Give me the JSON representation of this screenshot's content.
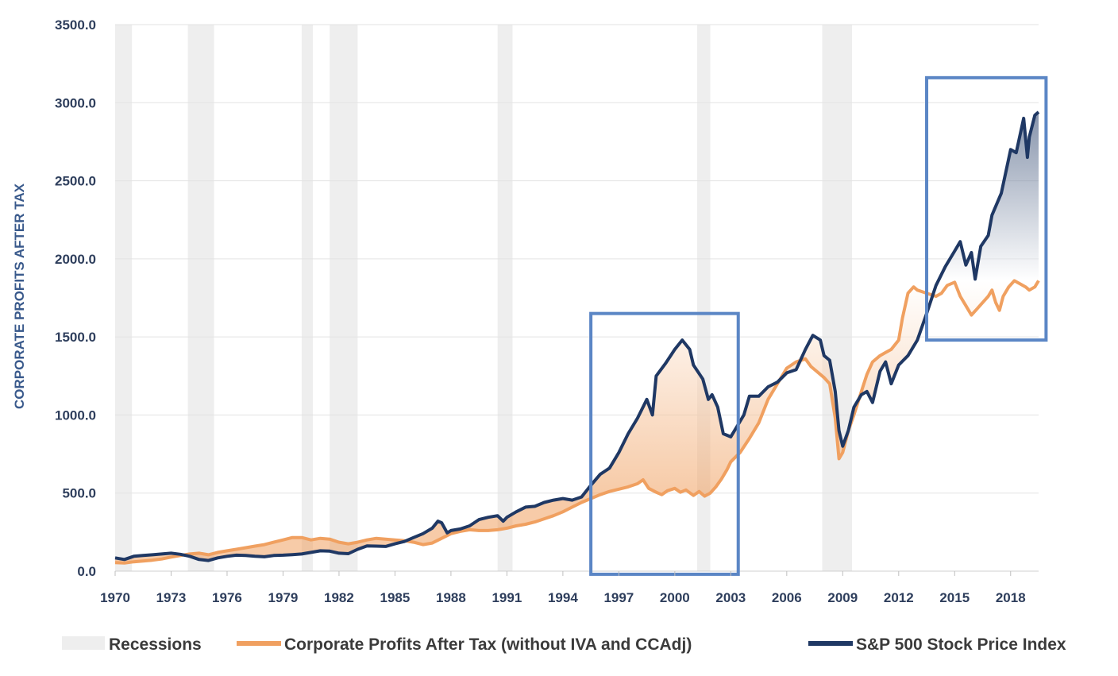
{
  "chart_data": {
    "type": "line",
    "title": "",
    "ylabel": "CORPORATE PROFITS AFTER TAX",
    "xlabel": "",
    "ylim": [
      0,
      3500
    ],
    "xlim": [
      1970,
      2019.5
    ],
    "y_ticks": [
      "0.0",
      "500.0",
      "1000.0",
      "1500.0",
      "2000.0",
      "2500.0",
      "3000.0",
      "3500.0"
    ],
    "x_ticks": [
      "1970",
      "1973",
      "1976",
      "1979",
      "1982",
      "1985",
      "1988",
      "1991",
      "1994",
      "1997",
      "2000",
      "2003",
      "2006",
      "2009",
      "2012",
      "2015",
      "2018"
    ],
    "grid": true,
    "legend_position": "bottom",
    "colors": {
      "recession": "#eeeeee",
      "profits": "#f0a060",
      "sp500": "#1f3864",
      "highlight_box": "#5b86c5",
      "grid": "#e3e3e3",
      "tick_text": "#2e3e5c"
    },
    "recessions": [
      [
        1970.0,
        1970.9
      ],
      [
        1973.9,
        1975.3
      ],
      [
        1980.0,
        1980.6
      ],
      [
        1981.5,
        1983.0
      ],
      [
        1990.5,
        1991.3
      ],
      [
        2001.2,
        2001.9
      ],
      [
        2007.9,
        2009.5
      ]
    ],
    "highlight_ranges": [
      {
        "x": [
          1995.5,
          2003.4
        ],
        "y": [
          -20,
          1650
        ]
      },
      {
        "x": [
          2013.5,
          2019.9
        ],
        "y": [
          1480,
          3160
        ]
      }
    ],
    "series": [
      {
        "name": "Corporate Profits After Tax (without IVA and CCAdj)",
        "points": [
          [
            1970.0,
            55
          ],
          [
            1970.5,
            52
          ],
          [
            1971.0,
            60
          ],
          [
            1971.5,
            65
          ],
          [
            1972.0,
            70
          ],
          [
            1972.5,
            78
          ],
          [
            1973.0,
            90
          ],
          [
            1973.5,
            100
          ],
          [
            1974.0,
            110
          ],
          [
            1974.5,
            115
          ],
          [
            1975.0,
            105
          ],
          [
            1975.5,
            120
          ],
          [
            1976.0,
            130
          ],
          [
            1976.5,
            140
          ],
          [
            1977.0,
            150
          ],
          [
            1977.5,
            160
          ],
          [
            1978.0,
            170
          ],
          [
            1978.5,
            185
          ],
          [
            1979.0,
            200
          ],
          [
            1979.5,
            215
          ],
          [
            1980.0,
            215
          ],
          [
            1980.5,
            200
          ],
          [
            1981.0,
            210
          ],
          [
            1981.5,
            205
          ],
          [
            1982.0,
            185
          ],
          [
            1982.5,
            175
          ],
          [
            1983.0,
            185
          ],
          [
            1983.5,
            200
          ],
          [
            1984.0,
            210
          ],
          [
            1984.5,
            205
          ],
          [
            1985.0,
            200
          ],
          [
            1985.5,
            195
          ],
          [
            1986.0,
            185
          ],
          [
            1986.5,
            170
          ],
          [
            1987.0,
            180
          ],
          [
            1987.5,
            210
          ],
          [
            1988.0,
            240
          ],
          [
            1988.5,
            255
          ],
          [
            1989.0,
            265
          ],
          [
            1989.5,
            260
          ],
          [
            1990.0,
            260
          ],
          [
            1990.5,
            265
          ],
          [
            1991.0,
            275
          ],
          [
            1991.5,
            290
          ],
          [
            1992.0,
            300
          ],
          [
            1992.5,
            315
          ],
          [
            1993.0,
            335
          ],
          [
            1993.5,
            355
          ],
          [
            1994.0,
            380
          ],
          [
            1994.5,
            410
          ],
          [
            1995.0,
            440
          ],
          [
            1995.5,
            465
          ],
          [
            1996.0,
            490
          ],
          [
            1996.5,
            510
          ],
          [
            1997.0,
            525
          ],
          [
            1997.5,
            540
          ],
          [
            1998.0,
            560
          ],
          [
            1998.3,
            585
          ],
          [
            1998.6,
            530
          ],
          [
            1999.0,
            505
          ],
          [
            1999.3,
            490
          ],
          [
            1999.6,
            515
          ],
          [
            2000.0,
            530
          ],
          [
            2000.3,
            505
          ],
          [
            2000.6,
            520
          ],
          [
            2001.0,
            485
          ],
          [
            2001.3,
            510
          ],
          [
            2001.6,
            480
          ],
          [
            2001.9,
            500
          ],
          [
            2002.2,
            540
          ],
          [
            2002.5,
            590
          ],
          [
            2002.8,
            650
          ],
          [
            2003.0,
            700
          ],
          [
            2003.5,
            760
          ],
          [
            2004.0,
            850
          ],
          [
            2004.5,
            950
          ],
          [
            2005.0,
            1100
          ],
          [
            2005.5,
            1200
          ],
          [
            2006.0,
            1300
          ],
          [
            2006.5,
            1340
          ],
          [
            2007.0,
            1360
          ],
          [
            2007.3,
            1310
          ],
          [
            2007.6,
            1280
          ],
          [
            2008.0,
            1240
          ],
          [
            2008.3,
            1200
          ],
          [
            2008.6,
            980
          ],
          [
            2008.8,
            720
          ],
          [
            2009.0,
            760
          ],
          [
            2009.3,
            900
          ],
          [
            2009.6,
            1000
          ],
          [
            2010.0,
            1150
          ],
          [
            2010.3,
            1260
          ],
          [
            2010.6,
            1340
          ],
          [
            2011.0,
            1380
          ],
          [
            2011.3,
            1400
          ],
          [
            2011.6,
            1420
          ],
          [
            2012.0,
            1480
          ],
          [
            2012.2,
            1620
          ],
          [
            2012.5,
            1780
          ],
          [
            2012.8,
            1820
          ],
          [
            2013.0,
            1800
          ],
          [
            2013.5,
            1780
          ],
          [
            2014.0,
            1760
          ],
          [
            2014.3,
            1780
          ],
          [
            2014.6,
            1830
          ],
          [
            2015.0,
            1850
          ],
          [
            2015.3,
            1760
          ],
          [
            2015.6,
            1700
          ],
          [
            2015.9,
            1640
          ],
          [
            2016.2,
            1680
          ],
          [
            2016.5,
            1720
          ],
          [
            2016.8,
            1760
          ],
          [
            2017.0,
            1800
          ],
          [
            2017.2,
            1720
          ],
          [
            2017.4,
            1670
          ],
          [
            2017.6,
            1760
          ],
          [
            2017.9,
            1820
          ],
          [
            2018.2,
            1860
          ],
          [
            2018.5,
            1840
          ],
          [
            2018.8,
            1820
          ],
          [
            2019.0,
            1800
          ],
          [
            2019.3,
            1820
          ],
          [
            2019.5,
            1860
          ]
        ]
      },
      {
        "name": "S&P 500 Stock Price Index",
        "points": [
          [
            1970.0,
            85
          ],
          [
            1970.5,
            75
          ],
          [
            1971.0,
            95
          ],
          [
            1971.5,
            100
          ],
          [
            1972.0,
            105
          ],
          [
            1972.5,
            110
          ],
          [
            1973.0,
            115
          ],
          [
            1973.5,
            108
          ],
          [
            1974.0,
            95
          ],
          [
            1974.5,
            75
          ],
          [
            1975.0,
            68
          ],
          [
            1975.5,
            85
          ],
          [
            1976.0,
            95
          ],
          [
            1976.5,
            102
          ],
          [
            1977.0,
            100
          ],
          [
            1977.5,
            95
          ],
          [
            1978.0,
            92
          ],
          [
            1978.5,
            100
          ],
          [
            1979.0,
            102
          ],
          [
            1979.5,
            106
          ],
          [
            1980.0,
            110
          ],
          [
            1980.5,
            120
          ],
          [
            1981.0,
            130
          ],
          [
            1981.5,
            128
          ],
          [
            1982.0,
            115
          ],
          [
            1982.5,
            112
          ],
          [
            1983.0,
            140
          ],
          [
            1983.5,
            162
          ],
          [
            1984.0,
            160
          ],
          [
            1984.5,
            158
          ],
          [
            1985.0,
            175
          ],
          [
            1985.5,
            190
          ],
          [
            1986.0,
            215
          ],
          [
            1986.5,
            240
          ],
          [
            1987.0,
            275
          ],
          [
            1987.3,
            320
          ],
          [
            1987.5,
            310
          ],
          [
            1987.8,
            245
          ],
          [
            1988.0,
            260
          ],
          [
            1988.5,
            270
          ],
          [
            1989.0,
            290
          ],
          [
            1989.5,
            330
          ],
          [
            1990.0,
            345
          ],
          [
            1990.5,
            355
          ],
          [
            1990.8,
            320
          ],
          [
            1991.0,
            345
          ],
          [
            1991.5,
            380
          ],
          [
            1992.0,
            410
          ],
          [
            1992.5,
            415
          ],
          [
            1993.0,
            440
          ],
          [
            1993.5,
            455
          ],
          [
            1994.0,
            465
          ],
          [
            1994.5,
            455
          ],
          [
            1995.0,
            475
          ],
          [
            1995.5,
            550
          ],
          [
            1996.0,
            620
          ],
          [
            1996.5,
            660
          ],
          [
            1997.0,
            760
          ],
          [
            1997.5,
            880
          ],
          [
            1998.0,
            980
          ],
          [
            1998.5,
            1100
          ],
          [
            1998.8,
            1000
          ],
          [
            1999.0,
            1250
          ],
          [
            1999.5,
            1330
          ],
          [
            2000.0,
            1420
          ],
          [
            2000.4,
            1480
          ],
          [
            2000.8,
            1420
          ],
          [
            2001.0,
            1320
          ],
          [
            2001.5,
            1230
          ],
          [
            2001.8,
            1100
          ],
          [
            2002.0,
            1130
          ],
          [
            2002.3,
            1050
          ],
          [
            2002.6,
            880
          ],
          [
            2003.0,
            860
          ],
          [
            2003.3,
            920
          ],
          [
            2003.7,
            1000
          ],
          [
            2004.0,
            1120
          ],
          [
            2004.5,
            1120
          ],
          [
            2005.0,
            1180
          ],
          [
            2005.5,
            1210
          ],
          [
            2006.0,
            1270
          ],
          [
            2006.5,
            1290
          ],
          [
            2007.0,
            1420
          ],
          [
            2007.4,
            1510
          ],
          [
            2007.8,
            1480
          ],
          [
            2008.0,
            1380
          ],
          [
            2008.3,
            1350
          ],
          [
            2008.6,
            1150
          ],
          [
            2008.8,
            900
          ],
          [
            2009.0,
            800
          ],
          [
            2009.3,
            900
          ],
          [
            2009.6,
            1050
          ],
          [
            2010.0,
            1130
          ],
          [
            2010.3,
            1150
          ],
          [
            2010.6,
            1080
          ],
          [
            2011.0,
            1280
          ],
          [
            2011.3,
            1340
          ],
          [
            2011.6,
            1200
          ],
          [
            2012.0,
            1320
          ],
          [
            2012.5,
            1380
          ],
          [
            2013.0,
            1480
          ],
          [
            2013.5,
            1650
          ],
          [
            2014.0,
            1830
          ],
          [
            2014.5,
            1950
          ],
          [
            2015.0,
            2050
          ],
          [
            2015.3,
            2110
          ],
          [
            2015.6,
            1960
          ],
          [
            2015.9,
            2040
          ],
          [
            2016.1,
            1870
          ],
          [
            2016.4,
            2080
          ],
          [
            2016.8,
            2150
          ],
          [
            2017.0,
            2280
          ],
          [
            2017.5,
            2420
          ],
          [
            2018.0,
            2700
          ],
          [
            2018.3,
            2680
          ],
          [
            2018.7,
            2900
          ],
          [
            2018.9,
            2650
          ],
          [
            2019.0,
            2780
          ],
          [
            2019.3,
            2920
          ],
          [
            2019.5,
            2940
          ]
        ]
      }
    ]
  },
  "legend": {
    "recessions": "Recessions",
    "profits": "Corporate Profits After Tax (without IVA and CCAdj)",
    "sp500": "S&P 500 Stock Price Index"
  }
}
